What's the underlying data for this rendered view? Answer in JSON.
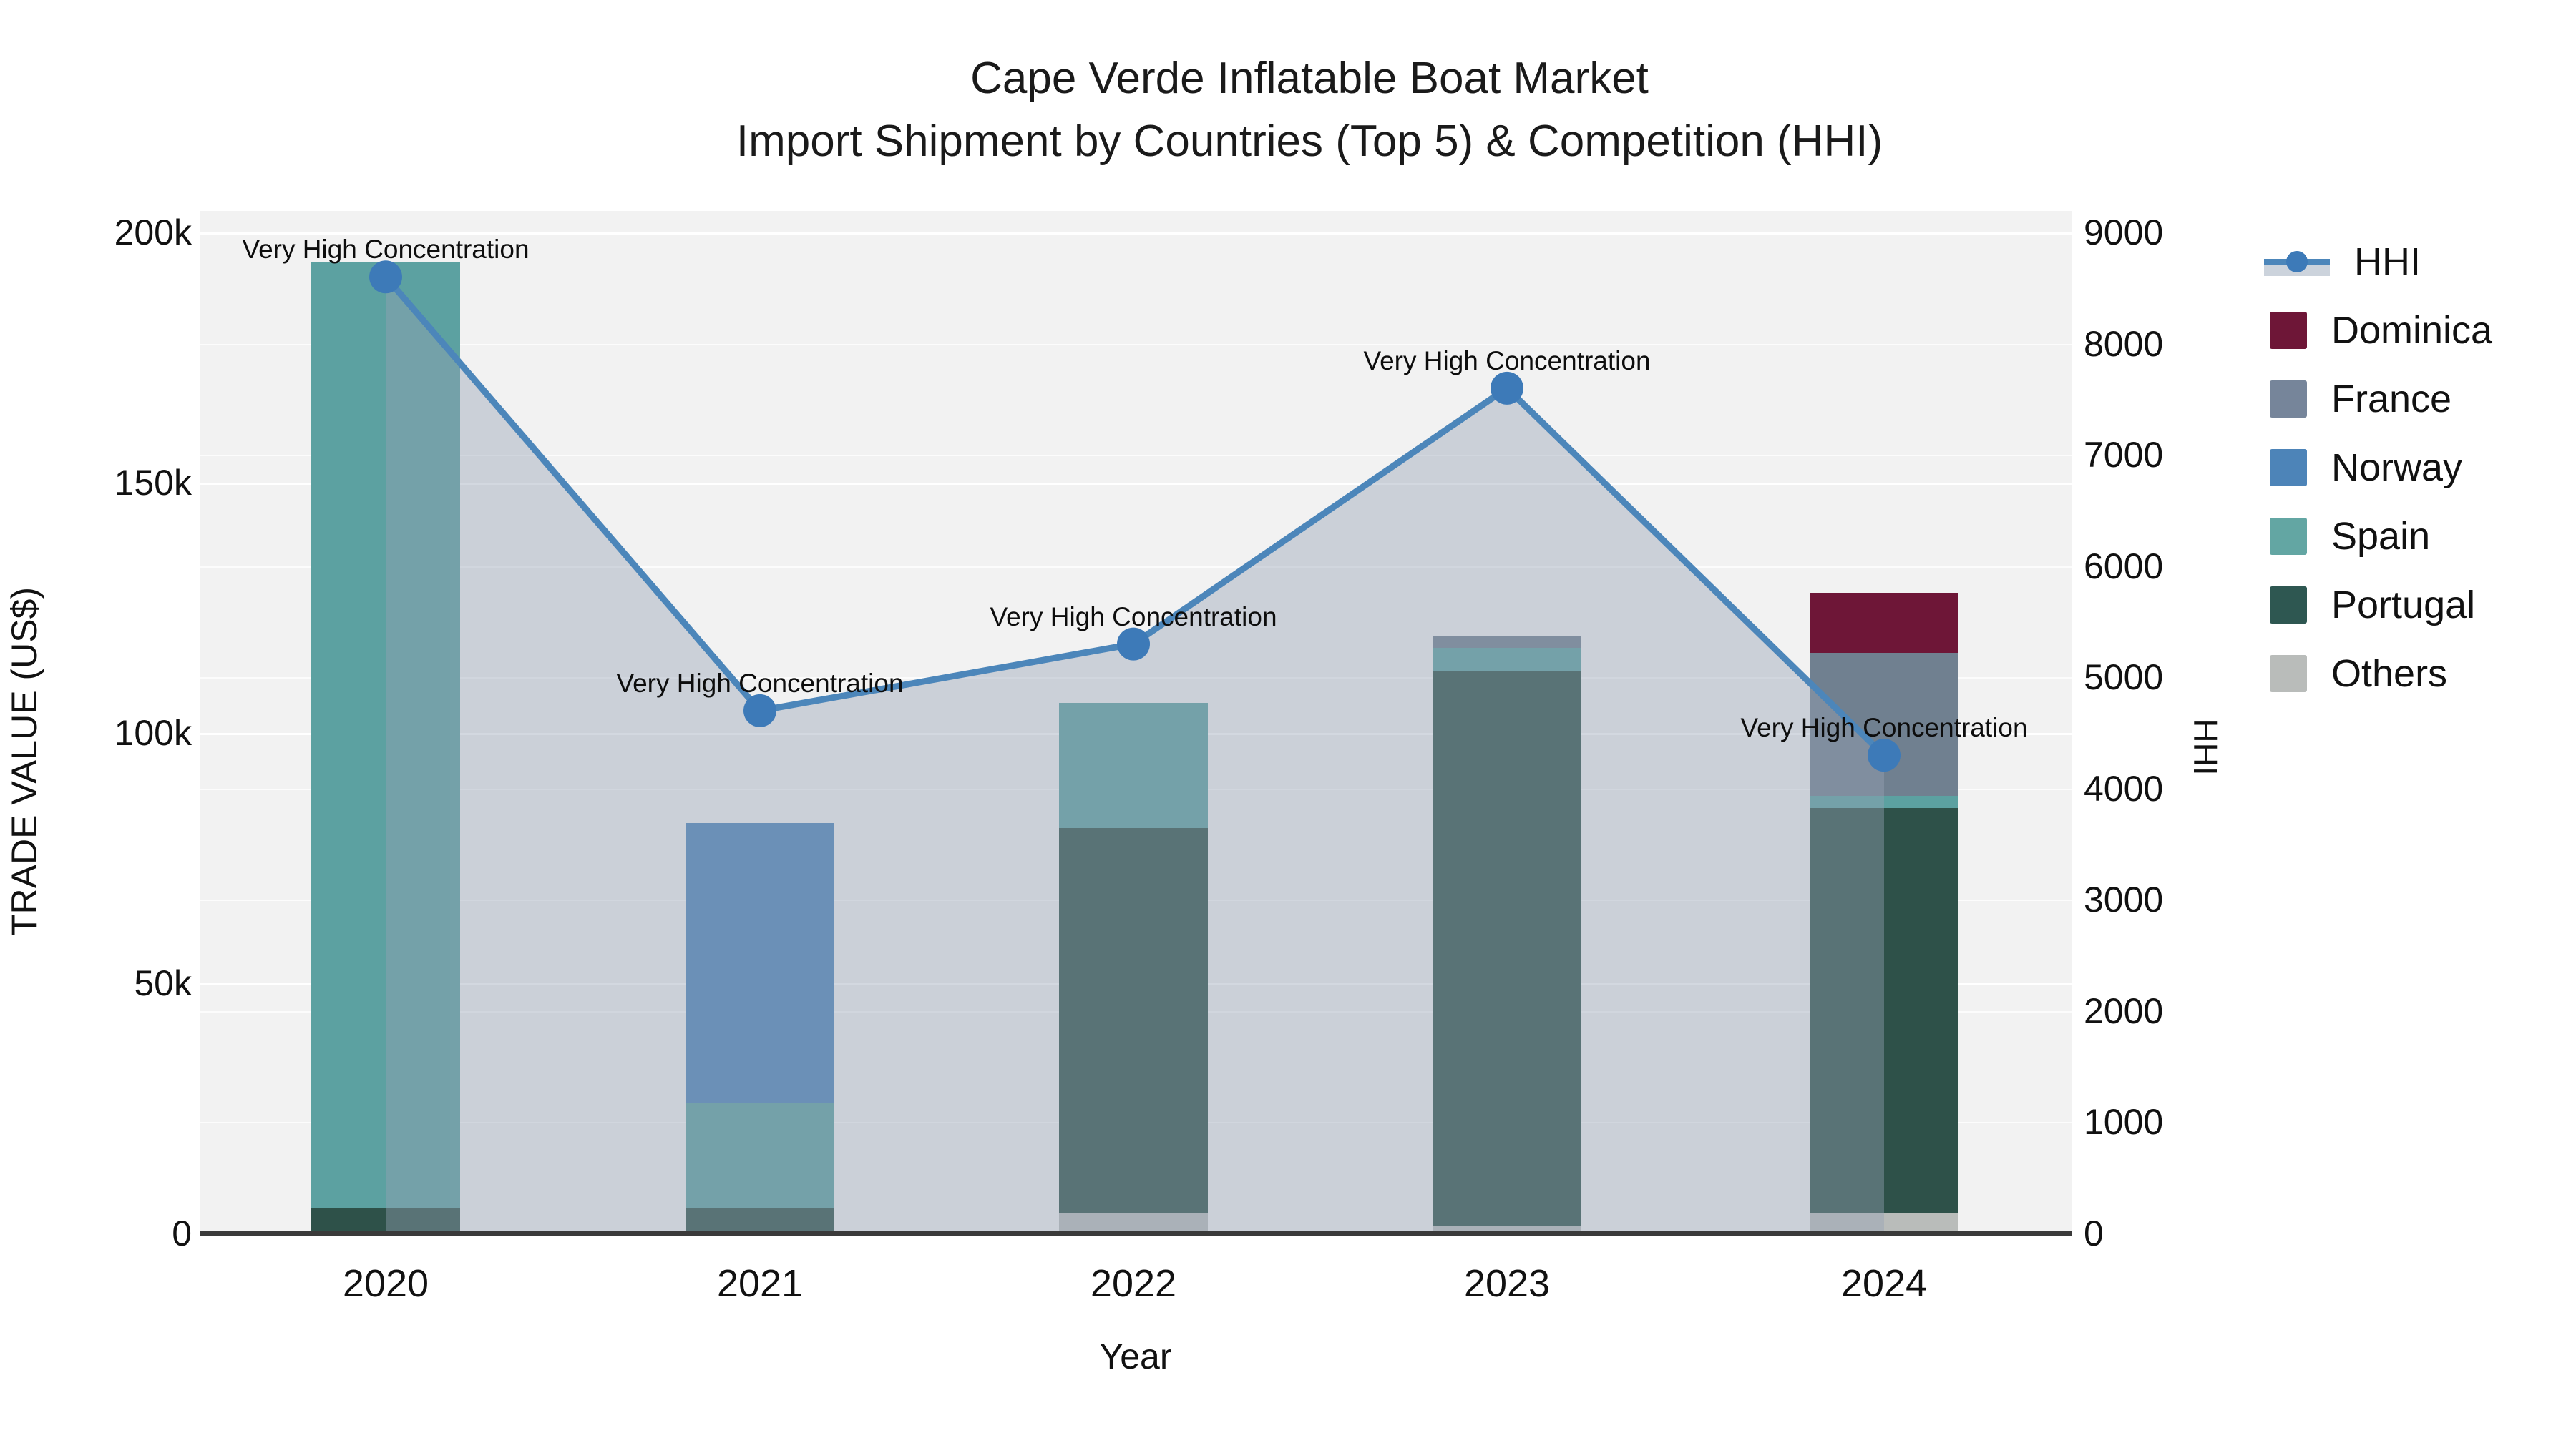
{
  "title": {
    "line1": "Cape Verde Inflatable Boat Market",
    "line2": "Import Shipment by Countries (Top 5) & Competition (HHI)"
  },
  "axes": {
    "x_title": "Year",
    "y_left_title": "TRADE VALUE (US$)",
    "y_right_title": "HHI",
    "y_left_ticks": [
      "0",
      "50k",
      "100k",
      "150k",
      "200k"
    ],
    "y_right_ticks": [
      "0",
      "1000",
      "2000",
      "3000",
      "4000",
      "5000",
      "6000",
      "7000",
      "8000",
      "9000"
    ]
  },
  "legend": {
    "items": [
      {
        "label": "HHI",
        "type": "line",
        "color": "#4c86ba"
      },
      {
        "label": "Dominica",
        "type": "swatch",
        "color": "#6e1637"
      },
      {
        "label": "France",
        "type": "swatch",
        "color": "#76859a"
      },
      {
        "label": "Norway",
        "type": "swatch",
        "color": "#4d84b8"
      },
      {
        "label": "Spain",
        "type": "swatch",
        "color": "#63a6a3"
      },
      {
        "label": "Portugal",
        "type": "swatch",
        "color": "#2e5751"
      },
      {
        "label": "Others",
        "type": "swatch",
        "color": "#b9bcba"
      }
    ]
  },
  "chart_data": {
    "type": "bar+line",
    "categories": [
      "2020",
      "2021",
      "2022",
      "2023",
      "2024"
    ],
    "x_axis_label": "Year",
    "y_left_label": "TRADE VALUE (US$)",
    "y_right_label": "HHI",
    "ylim_left": [
      0,
      200000
    ],
    "ylim_right": [
      0,
      9000
    ],
    "bar_stack_order_bottom_to_top": [
      "Others",
      "Portugal",
      "Spain",
      "Norway",
      "France",
      "Dominica"
    ],
    "series": [
      {
        "name": "Others",
        "color": "#b9bcba",
        "values": [
          0,
          0,
          4000,
          1500,
          4000
        ]
      },
      {
        "name": "Portugal",
        "color": "#2e5149",
        "values": [
          5000,
          5000,
          77000,
          111000,
          81000
        ]
      },
      {
        "name": "Spain",
        "color": "#5ca1a1",
        "values": [
          189000,
          21000,
          25000,
          4500,
          2500
        ]
      },
      {
        "name": "Norway",
        "color": "#4d84b8",
        "values": [
          0,
          56000,
          0,
          0,
          0
        ]
      },
      {
        "name": "France",
        "color": "#708090",
        "values": [
          0,
          0,
          0,
          2500,
          28500
        ]
      },
      {
        "name": "Dominica",
        "color": "#6e1637",
        "values": [
          0,
          0,
          0,
          0,
          12000
        ]
      }
    ],
    "bar_totals": [
      194000,
      82000,
      106000,
      119500,
      128000
    ],
    "hhi_line": {
      "name": "HHI",
      "values": [
        8600,
        4700,
        5300,
        7600,
        4300
      ],
      "line_color": "#4c86ba",
      "marker_color": "#3d7ab8",
      "area_fill_color": "rgba(150,163,182,0.42)"
    },
    "annotations": [
      {
        "year": "2020",
        "text": "Very High Concentration"
      },
      {
        "year": "2021",
        "text": "Very High Concentration"
      },
      {
        "year": "2022",
        "text": "Very High Concentration"
      },
      {
        "year": "2023",
        "text": "Very High Concentration"
      },
      {
        "year": "2024",
        "text": "Very High Concentration"
      }
    ],
    "plot_background": "#f2f2f2",
    "gridline_color": "#ffffff",
    "axis_line_color": "#3a3a3a",
    "legend_position": "right"
  }
}
